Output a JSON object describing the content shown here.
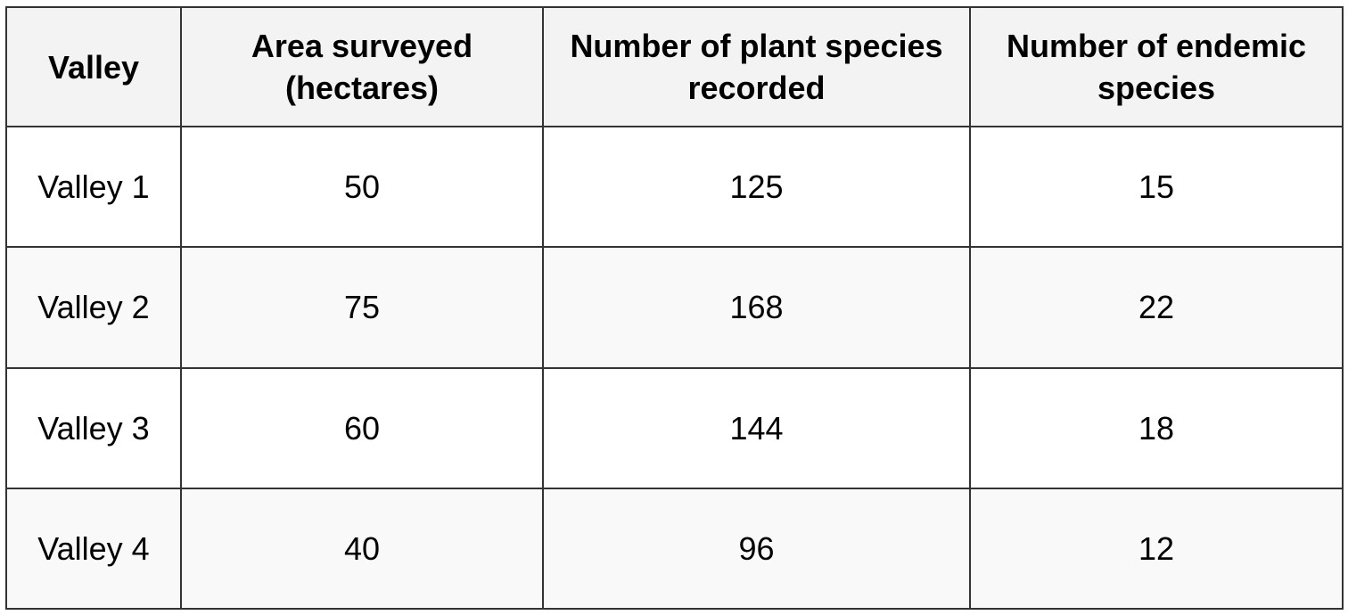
{
  "chart_data": {
    "type": "table",
    "columns": [
      "Valley",
      "Area surveyed (hectares)",
      "Number of plant species recorded",
      "Number of endemic species"
    ],
    "rows": [
      [
        "Valley 1",
        "50",
        "125",
        "15"
      ],
      [
        "Valley 2",
        "75",
        "168",
        "22"
      ],
      [
        "Valley 3",
        "60",
        "144",
        "18"
      ],
      [
        "Valley 4",
        "40",
        "96",
        "12"
      ]
    ]
  }
}
